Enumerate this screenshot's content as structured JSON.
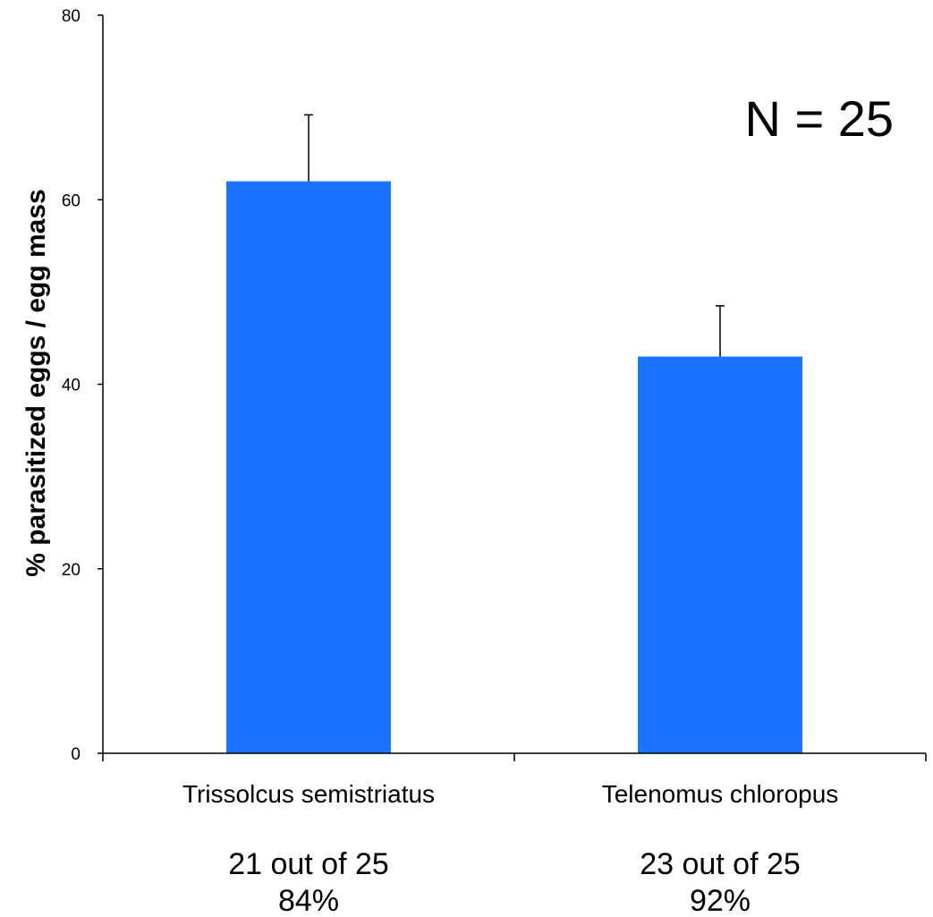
{
  "chart_data": {
    "type": "bar",
    "categories": [
      "Trissolcus semistriatus",
      "Telenomus chloropus"
    ],
    "values": [
      62,
      43
    ],
    "error_upper": [
      7.2,
      5.5
    ],
    "ylabel": "% parasitized eggs / egg mass",
    "xlabel": "",
    "ylim": [
      0,
      80
    ],
    "yticks": [
      "0",
      "20",
      "40",
      "60",
      "80"
    ],
    "annotation": "N = 25",
    "category_sublabels": [
      [
        "21 out of 25",
        "84%"
      ],
      [
        "23 out of 25",
        "92%"
      ]
    ],
    "grid": false,
    "bar_color": "#1b74ff",
    "axis_color": "#000000"
  }
}
